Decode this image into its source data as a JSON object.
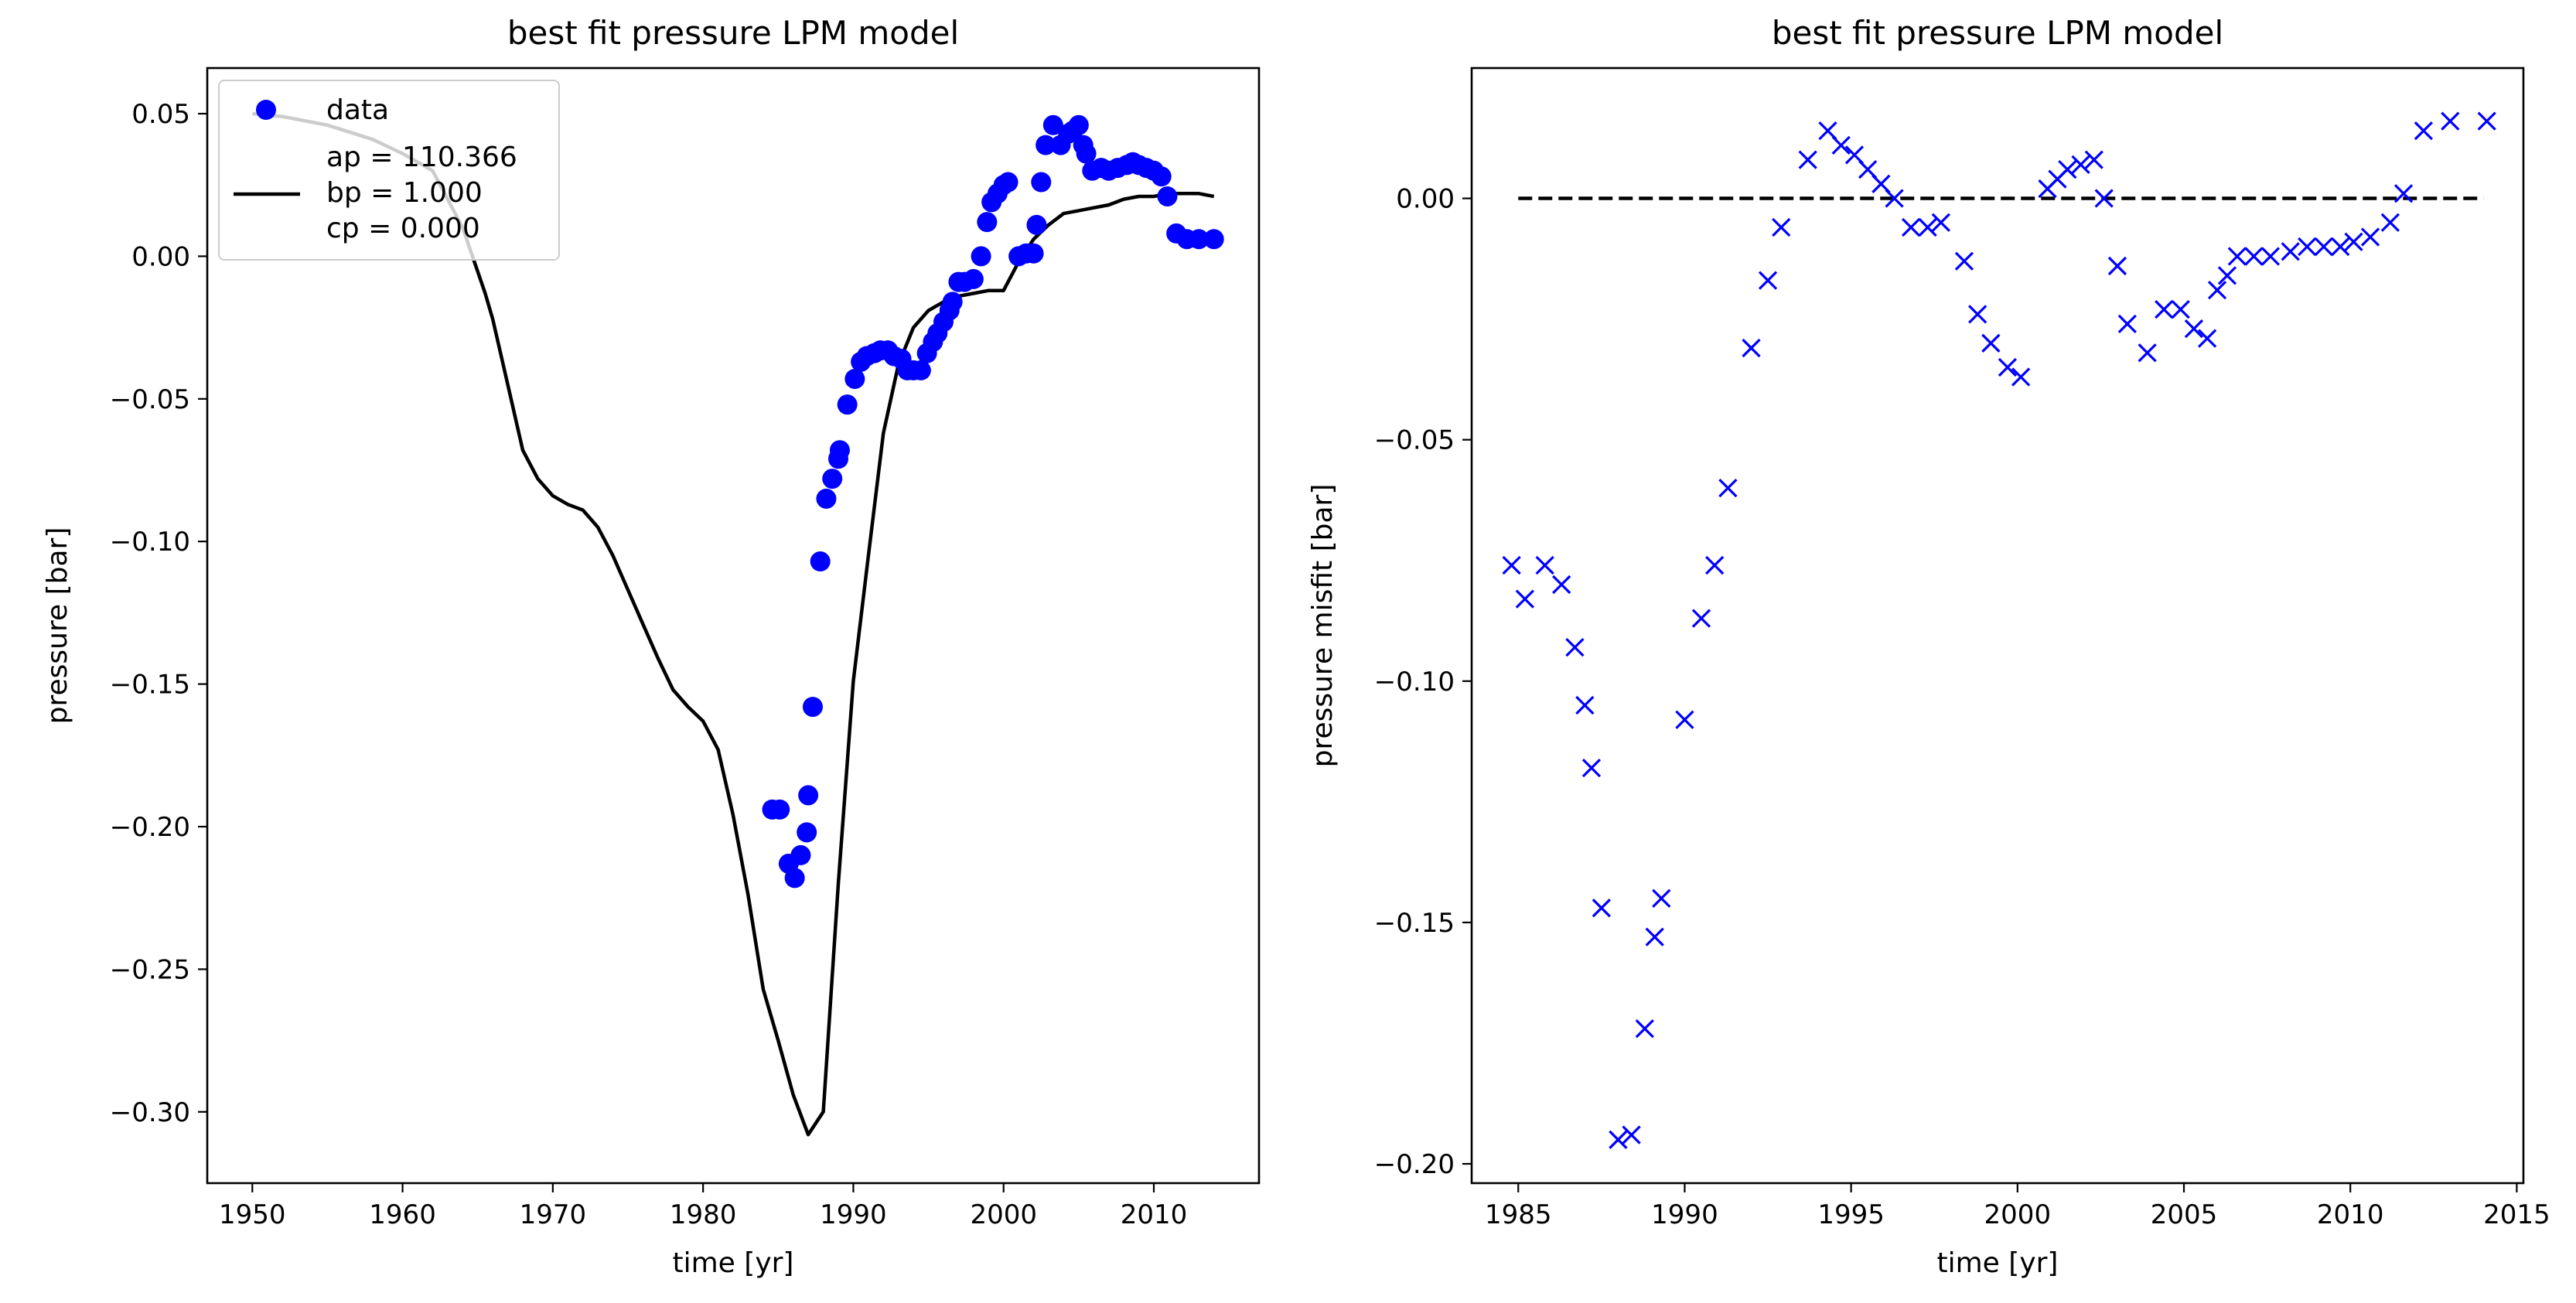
{
  "chart_data": [
    {
      "type": "scatter+line",
      "title": "best fit pressure LPM model",
      "xlabel": "time [yr]",
      "ylabel": "pressure [bar]",
      "xlim": [
        1947,
        2017
      ],
      "ylim": [
        -0.325,
        0.066
      ],
      "xticks": [
        1950,
        1960,
        1970,
        1980,
        1990,
        2000,
        2010
      ],
      "yticks": [
        0.05,
        0.0,
        -0.05,
        -0.1,
        -0.15,
        -0.2,
        -0.25,
        -0.3
      ],
      "ytick_labels": [
        "0.05",
        "0.00",
        "−0.05",
        "−0.10",
        "−0.15",
        "−0.20",
        "−0.25",
        "−0.30"
      ],
      "xtick_labels": [
        "1950",
        "1960",
        "1970",
        "1980",
        "1990",
        "2000",
        "2010"
      ],
      "legend": {
        "position": "upper-left",
        "data_label": "data",
        "model_label_lines": [
          "ap = 110.366",
          "bp = 1.000",
          "cp = 0.000"
        ]
      },
      "series": [
        {
          "name": "data",
          "kind": "scatter",
          "marker": "circle",
          "color": "#0000ff",
          "points": [
            [
              1984.6,
              -0.194
            ],
            [
              1985.1,
              -0.194
            ],
            [
              1985.7,
              -0.213
            ],
            [
              1986.1,
              -0.218
            ],
            [
              1986.5,
              -0.21
            ],
            [
              1986.9,
              -0.202
            ],
            [
              1987.0,
              -0.189
            ],
            [
              1987.3,
              -0.158
            ],
            [
              1987.8,
              -0.107
            ],
            [
              1988.2,
              -0.085
            ],
            [
              1988.6,
              -0.078
            ],
            [
              1989.0,
              -0.071
            ],
            [
              1989.1,
              -0.068
            ],
            [
              1989.6,
              -0.052
            ],
            [
              1990.1,
              -0.043
            ],
            [
              1990.5,
              -0.037
            ],
            [
              1990.9,
              -0.035
            ],
            [
              1991.4,
              -0.034
            ],
            [
              1991.8,
              -0.033
            ],
            [
              1992.3,
              -0.033
            ],
            [
              1992.7,
              -0.035
            ],
            [
              1993.2,
              -0.036
            ],
            [
              1993.6,
              -0.04
            ],
            [
              1994.0,
              -0.04
            ],
            [
              1994.5,
              -0.04
            ],
            [
              1994.9,
              -0.034
            ],
            [
              1995.3,
              -0.03
            ],
            [
              1995.6,
              -0.027
            ],
            [
              1996.0,
              -0.023
            ],
            [
              1996.4,
              -0.019
            ],
            [
              1996.6,
              -0.016
            ],
            [
              1997.0,
              -0.009
            ],
            [
              1997.4,
              -0.009
            ],
            [
              1998.0,
              -0.008
            ],
            [
              1998.5,
              0.0
            ],
            [
              1998.9,
              0.012
            ],
            [
              1999.2,
              0.019
            ],
            [
              1999.6,
              0.022
            ],
            [
              2000.0,
              0.025
            ],
            [
              2000.3,
              0.026
            ],
            [
              2001.0,
              0.0
            ],
            [
              2001.5,
              0.001
            ],
            [
              2002.0,
              0.001
            ],
            [
              2002.2,
              0.011
            ],
            [
              2002.5,
              0.026
            ],
            [
              2002.8,
              0.039
            ],
            [
              2003.3,
              0.046
            ],
            [
              2003.8,
              0.039
            ],
            [
              2004.3,
              0.043
            ],
            [
              2004.6,
              0.044
            ],
            [
              2005.0,
              0.046
            ],
            [
              2005.3,
              0.039
            ],
            [
              2005.5,
              0.036
            ],
            [
              2005.9,
              0.03
            ],
            [
              2006.5,
              0.031
            ],
            [
              2007.0,
              0.03
            ],
            [
              2007.6,
              0.031
            ],
            [
              2008.2,
              0.032
            ],
            [
              2008.6,
              0.033
            ],
            [
              2009.0,
              0.032
            ],
            [
              2009.5,
              0.031
            ],
            [
              2010.0,
              0.03
            ],
            [
              2010.5,
              0.028
            ],
            [
              2010.9,
              0.021
            ],
            [
              2011.5,
              0.008
            ],
            [
              2012.2,
              0.006
            ],
            [
              2013.0,
              0.006
            ],
            [
              2014.0,
              0.006
            ]
          ]
        },
        {
          "name": "model",
          "kind": "line",
          "color": "#000000",
          "points": [
            [
              1950,
              0.05
            ],
            [
              1952,
              0.049
            ],
            [
              1955,
              0.046
            ],
            [
              1958,
              0.041
            ],
            [
              1960,
              0.036
            ],
            [
              1962,
              0.03
            ],
            [
              1964,
              0.01
            ],
            [
              1965.5,
              -0.013
            ],
            [
              1966,
              -0.022
            ],
            [
              1967,
              -0.045
            ],
            [
              1968,
              -0.068
            ],
            [
              1969,
              -0.078
            ],
            [
              1970,
              -0.084
            ],
            [
              1971,
              -0.087
            ],
            [
              1972,
              -0.089
            ],
            [
              1973,
              -0.095
            ],
            [
              1974,
              -0.105
            ],
            [
              1975,
              -0.117
            ],
            [
              1976,
              -0.129
            ],
            [
              1977,
              -0.141
            ],
            [
              1978,
              -0.152
            ],
            [
              1979,
              -0.158
            ],
            [
              1980,
              -0.163
            ],
            [
              1981,
              -0.173
            ],
            [
              1982,
              -0.196
            ],
            [
              1983,
              -0.224
            ],
            [
              1984,
              -0.257
            ],
            [
              1985,
              -0.275
            ],
            [
              1986,
              -0.294
            ],
            [
              1987,
              -0.308
            ],
            [
              1988,
              -0.3
            ],
            [
              1988.5,
              -0.26
            ],
            [
              1989,
              -0.22
            ],
            [
              1990,
              -0.149
            ],
            [
              1991,
              -0.105
            ],
            [
              1992,
              -0.062
            ],
            [
              1993,
              -0.038
            ],
            [
              1994,
              -0.025
            ],
            [
              1995,
              -0.019
            ],
            [
              1996,
              -0.016
            ],
            [
              1997,
              -0.014
            ],
            [
              1998,
              -0.013
            ],
            [
              1999,
              -0.012
            ],
            [
              2000,
              -0.012
            ],
            [
              2001,
              -0.002
            ],
            [
              2002,
              0.006
            ],
            [
              2003,
              0.011
            ],
            [
              2004,
              0.015
            ],
            [
              2005,
              0.016
            ],
            [
              2006,
              0.017
            ],
            [
              2007,
              0.018
            ],
            [
              2008,
              0.02
            ],
            [
              2009,
              0.021
            ],
            [
              2010,
              0.021
            ],
            [
              2011,
              0.022
            ],
            [
              2012,
              0.022
            ],
            [
              2013,
              0.022
            ],
            [
              2014,
              0.021
            ]
          ]
        }
      ]
    },
    {
      "type": "scatter",
      "title": "best fit pressure LPM model",
      "xlabel": "time [yr]",
      "ylabel": "pressure misfit [bar]",
      "xlim": [
        1983.6,
        2015.2
      ],
      "ylim": [
        -0.204,
        0.027
      ],
      "xticks": [
        1985,
        1990,
        1995,
        2000,
        2005,
        2010,
        2015
      ],
      "xtick_labels": [
        "1985",
        "1990",
        "1995",
        "2000",
        "2005",
        "2010",
        "2015"
      ],
      "yticks": [
        0.0,
        -0.05,
        -0.1,
        -0.15,
        -0.2
      ],
      "ytick_labels": [
        "0.00",
        "−0.05",
        "−0.10",
        "−0.15",
        "−0.20"
      ],
      "reference_line": {
        "y": 0.0,
        "x_range": [
          1985,
          2014
        ],
        "style": "dashed",
        "color": "#000000"
      },
      "series": [
        {
          "kind": "scatter",
          "marker": "x",
          "color": "#0000ff",
          "points": [
            [
              1984.8,
              -0.076
            ],
            [
              1985.2,
              -0.083
            ],
            [
              1985.8,
              -0.076
            ],
            [
              1986.3,
              -0.08
            ],
            [
              1986.7,
              -0.093
            ],
            [
              1987.0,
              -0.105
            ],
            [
              1987.2,
              -0.118
            ],
            [
              1987.5,
              -0.147
            ],
            [
              1988.0,
              -0.195
            ],
            [
              1988.4,
              -0.194
            ],
            [
              1988.8,
              -0.172
            ],
            [
              1989.1,
              -0.153
            ],
            [
              1989.3,
              -0.145
            ],
            [
              1990.0,
              -0.108
            ],
            [
              1990.5,
              -0.087
            ],
            [
              1990.9,
              -0.076
            ],
            [
              1991.3,
              -0.06
            ],
            [
              1992.0,
              -0.031
            ],
            [
              1992.5,
              -0.017
            ],
            [
              1992.9,
              -0.006
            ],
            [
              1993.7,
              0.008
            ],
            [
              1994.3,
              0.014
            ],
            [
              1994.7,
              0.011
            ],
            [
              1995.1,
              0.009
            ],
            [
              1995.5,
              0.006
            ],
            [
              1995.9,
              0.003
            ],
            [
              1996.3,
              0.0
            ],
            [
              1996.8,
              -0.006
            ],
            [
              1997.3,
              -0.006
            ],
            [
              1997.7,
              -0.005
            ],
            [
              1998.4,
              -0.013
            ],
            [
              1998.8,
              -0.024
            ],
            [
              1999.2,
              -0.03
            ],
            [
              1999.7,
              -0.035
            ],
            [
              2000.1,
              -0.037
            ],
            [
              2000.9,
              0.002
            ],
            [
              2001.2,
              0.004
            ],
            [
              2001.5,
              0.006
            ],
            [
              2001.9,
              0.007
            ],
            [
              2002.3,
              0.008
            ],
            [
              2002.6,
              0.0
            ],
            [
              2003.0,
              -0.014
            ],
            [
              2003.3,
              -0.026
            ],
            [
              2003.9,
              -0.032
            ],
            [
              2004.4,
              -0.023
            ],
            [
              2004.9,
              -0.023
            ],
            [
              2005.3,
              -0.027
            ],
            [
              2005.7,
              -0.029
            ],
            [
              2006.0,
              -0.019
            ],
            [
              2006.3,
              -0.016
            ],
            [
              2006.6,
              -0.012
            ],
            [
              2007.1,
              -0.012
            ],
            [
              2007.6,
              -0.012
            ],
            [
              2008.2,
              -0.011
            ],
            [
              2008.7,
              -0.01
            ],
            [
              2009.2,
              -0.01
            ],
            [
              2009.7,
              -0.01
            ],
            [
              2010.1,
              -0.009
            ],
            [
              2010.6,
              -0.008
            ],
            [
              2011.2,
              -0.005
            ],
            [
              2011.6,
              0.001
            ],
            [
              2012.2,
              0.014
            ],
            [
              2013.0,
              0.016
            ],
            [
              2014.1,
              0.016
            ]
          ]
        }
      ]
    }
  ]
}
